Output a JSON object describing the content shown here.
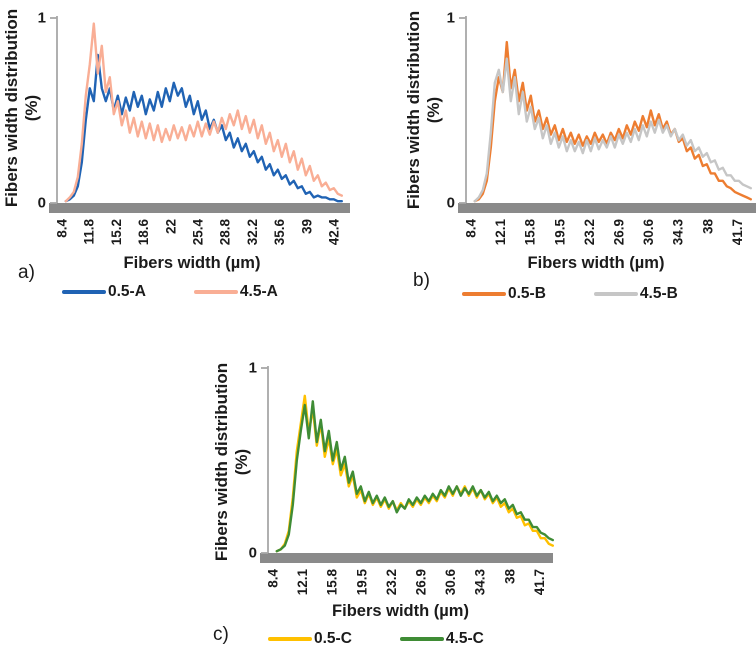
{
  "figure": {
    "description": "Fibers width distribution curves for samples A, B and C at 0.5 and 4.5 conditions",
    "background": "#ffffff",
    "axis_color": "#a7a7a7",
    "band_color": "#8a8a8a",
    "text_color": "#1b1b1b"
  },
  "chart_data": [
    {
      "type": "line",
      "panel_label": "a)",
      "y_label": "Fibers width distribution",
      "y_label_2": "(%)",
      "x_label": "Fibers width  (µm)",
      "ylim": [
        0,
        1
      ],
      "grid": false,
      "legend_position": "bottom",
      "y_ticks": [
        {
          "label": "1",
          "value": 1
        },
        {
          "label": "0",
          "value": 0
        }
      ],
      "x_axis_start": 8.4,
      "x_ticks": [
        "8.4",
        "11.8",
        "15.2",
        "18.6",
        "22",
        "25.4",
        "28.8",
        "32.2",
        "35.6",
        "39",
        "42.4"
      ],
      "series": [
        {
          "name": "0.5-A",
          "color": "#2063b4",
          "x_start": 9.0,
          "x_step": 0.5,
          "values": [
            0.01,
            0.02,
            0.04,
            0.09,
            0.22,
            0.45,
            0.62,
            0.55,
            0.8,
            0.62,
            0.55,
            0.62,
            0.5,
            0.58,
            0.48,
            0.57,
            0.5,
            0.6,
            0.52,
            0.58,
            0.48,
            0.56,
            0.5,
            0.6,
            0.52,
            0.62,
            0.55,
            0.65,
            0.58,
            0.62,
            0.52,
            0.58,
            0.48,
            0.55,
            0.45,
            0.5,
            0.4,
            0.45,
            0.38,
            0.42,
            0.34,
            0.38,
            0.3,
            0.35,
            0.28,
            0.32,
            0.25,
            0.28,
            0.22,
            0.25,
            0.18,
            0.21,
            0.15,
            0.18,
            0.13,
            0.15,
            0.1,
            0.12,
            0.08,
            0.09,
            0.05,
            0.06,
            0.03,
            0.04,
            0.03,
            0.03,
            0.02,
            0.02,
            0.01,
            0.01
          ]
        },
        {
          "name": "4.5-A",
          "color": "#f9ae95",
          "x_start": 9.0,
          "x_step": 0.5,
          "values": [
            0.01,
            0.03,
            0.06,
            0.14,
            0.32,
            0.58,
            0.75,
            0.97,
            0.7,
            0.85,
            0.6,
            0.68,
            0.48,
            0.55,
            0.42,
            0.5,
            0.38,
            0.46,
            0.36,
            0.44,
            0.35,
            0.43,
            0.34,
            0.42,
            0.33,
            0.4,
            0.34,
            0.42,
            0.35,
            0.41,
            0.34,
            0.42,
            0.36,
            0.44,
            0.36,
            0.43,
            0.37,
            0.44,
            0.38,
            0.46,
            0.4,
            0.48,
            0.42,
            0.5,
            0.4,
            0.47,
            0.38,
            0.45,
            0.35,
            0.42,
            0.32,
            0.38,
            0.28,
            0.34,
            0.25,
            0.32,
            0.22,
            0.28,
            0.18,
            0.24,
            0.15,
            0.2,
            0.12,
            0.15,
            0.09,
            0.11,
            0.07,
            0.08,
            0.05,
            0.04
          ]
        }
      ]
    },
    {
      "type": "line",
      "panel_label": "b)",
      "y_label": "Fibers width distribution",
      "y_label_2": "(%)",
      "x_label": "Fibers width  (µm)",
      "ylim": [
        0,
        1
      ],
      "grid": false,
      "legend_position": "bottom",
      "y_ticks": [
        {
          "label": "1",
          "value": 1
        },
        {
          "label": "0",
          "value": 0
        }
      ],
      "x_axis_start": 8.4,
      "x_ticks": [
        "8.4",
        "12.1",
        "15.8",
        "19.5",
        "23.2",
        "26.9",
        "30.6",
        "34.3",
        "38",
        "41.7"
      ],
      "series": [
        {
          "name": "0.5-B",
          "color": "#ed7d31",
          "x_start": 9.0,
          "x_step": 0.5,
          "values": [
            0.01,
            0.02,
            0.05,
            0.12,
            0.3,
            0.55,
            0.68,
            0.6,
            0.87,
            0.62,
            0.72,
            0.55,
            0.65,
            0.5,
            0.58,
            0.44,
            0.5,
            0.4,
            0.46,
            0.37,
            0.42,
            0.34,
            0.4,
            0.33,
            0.38,
            0.32,
            0.37,
            0.31,
            0.36,
            0.32,
            0.38,
            0.33,
            0.37,
            0.32,
            0.38,
            0.34,
            0.4,
            0.35,
            0.42,
            0.37,
            0.44,
            0.39,
            0.47,
            0.41,
            0.5,
            0.42,
            0.48,
            0.4,
            0.44,
            0.37,
            0.4,
            0.33,
            0.35,
            0.28,
            0.3,
            0.24,
            0.26,
            0.2,
            0.21,
            0.16,
            0.16,
            0.12,
            0.12,
            0.09,
            0.08,
            0.06,
            0.05,
            0.04,
            0.03,
            0.02
          ]
        },
        {
          "name": "4.5-B",
          "color": "#c6c6c6",
          "x_start": 9.0,
          "x_step": 0.5,
          "values": [
            0.01,
            0.03,
            0.07,
            0.16,
            0.38,
            0.65,
            0.72,
            0.6,
            0.78,
            0.55,
            0.68,
            0.48,
            0.6,
            0.44,
            0.52,
            0.4,
            0.46,
            0.35,
            0.42,
            0.32,
            0.38,
            0.3,
            0.36,
            0.28,
            0.34,
            0.28,
            0.33,
            0.27,
            0.34,
            0.28,
            0.35,
            0.29,
            0.34,
            0.3,
            0.36,
            0.3,
            0.37,
            0.32,
            0.38,
            0.33,
            0.4,
            0.34,
            0.42,
            0.36,
            0.44,
            0.38,
            0.45,
            0.38,
            0.42,
            0.36,
            0.4,
            0.34,
            0.37,
            0.31,
            0.34,
            0.28,
            0.3,
            0.25,
            0.27,
            0.22,
            0.23,
            0.18,
            0.19,
            0.15,
            0.15,
            0.12,
            0.12,
            0.1,
            0.09,
            0.08
          ]
        }
      ]
    },
    {
      "type": "line",
      "panel_label": "c)",
      "y_label": "Fibers width distribution",
      "y_label_2": "(%)",
      "x_label": "Fibers width  (µm)",
      "ylim": [
        0,
        1
      ],
      "grid": false,
      "legend_position": "bottom",
      "y_ticks": [
        {
          "label": "1",
          "value": 1
        },
        {
          "label": "0",
          "value": 0
        }
      ],
      "x_axis_start": 8.4,
      "x_ticks": [
        "8.4",
        "12.1",
        "15.8",
        "19.5",
        "23.2",
        "26.9",
        "30.6",
        "34.3",
        "38",
        "41.7"
      ],
      "series": [
        {
          "name": "0.5-C",
          "color": "#ffc000",
          "x_start": 9.0,
          "x_step": 0.5,
          "values": [
            0.01,
            0.02,
            0.05,
            0.12,
            0.3,
            0.55,
            0.7,
            0.85,
            0.65,
            0.78,
            0.58,
            0.7,
            0.52,
            0.62,
            0.48,
            0.56,
            0.42,
            0.48,
            0.36,
            0.42,
            0.3,
            0.34,
            0.27,
            0.32,
            0.26,
            0.3,
            0.25,
            0.29,
            0.24,
            0.28,
            0.23,
            0.27,
            0.24,
            0.28,
            0.25,
            0.29,
            0.26,
            0.3,
            0.27,
            0.31,
            0.28,
            0.33,
            0.3,
            0.35,
            0.31,
            0.36,
            0.32,
            0.36,
            0.31,
            0.35,
            0.3,
            0.34,
            0.29,
            0.32,
            0.27,
            0.3,
            0.25,
            0.27,
            0.22,
            0.24,
            0.19,
            0.2,
            0.15,
            0.16,
            0.12,
            0.12,
            0.08,
            0.08,
            0.05,
            0.04
          ]
        },
        {
          "name": "4.5-C",
          "color": "#3f8c35",
          "x_start": 9.0,
          "x_step": 0.5,
          "values": [
            0.01,
            0.02,
            0.04,
            0.1,
            0.26,
            0.5,
            0.66,
            0.8,
            0.62,
            0.82,
            0.6,
            0.72,
            0.55,
            0.66,
            0.5,
            0.6,
            0.45,
            0.52,
            0.38,
            0.44,
            0.32,
            0.36,
            0.28,
            0.33,
            0.27,
            0.31,
            0.26,
            0.3,
            0.25,
            0.28,
            0.22,
            0.26,
            0.24,
            0.29,
            0.26,
            0.3,
            0.27,
            0.31,
            0.28,
            0.32,
            0.29,
            0.34,
            0.31,
            0.36,
            0.32,
            0.36,
            0.31,
            0.35,
            0.32,
            0.36,
            0.31,
            0.34,
            0.3,
            0.33,
            0.28,
            0.31,
            0.27,
            0.29,
            0.24,
            0.26,
            0.21,
            0.22,
            0.18,
            0.18,
            0.14,
            0.14,
            0.11,
            0.1,
            0.08,
            0.07
          ]
        }
      ]
    }
  ]
}
